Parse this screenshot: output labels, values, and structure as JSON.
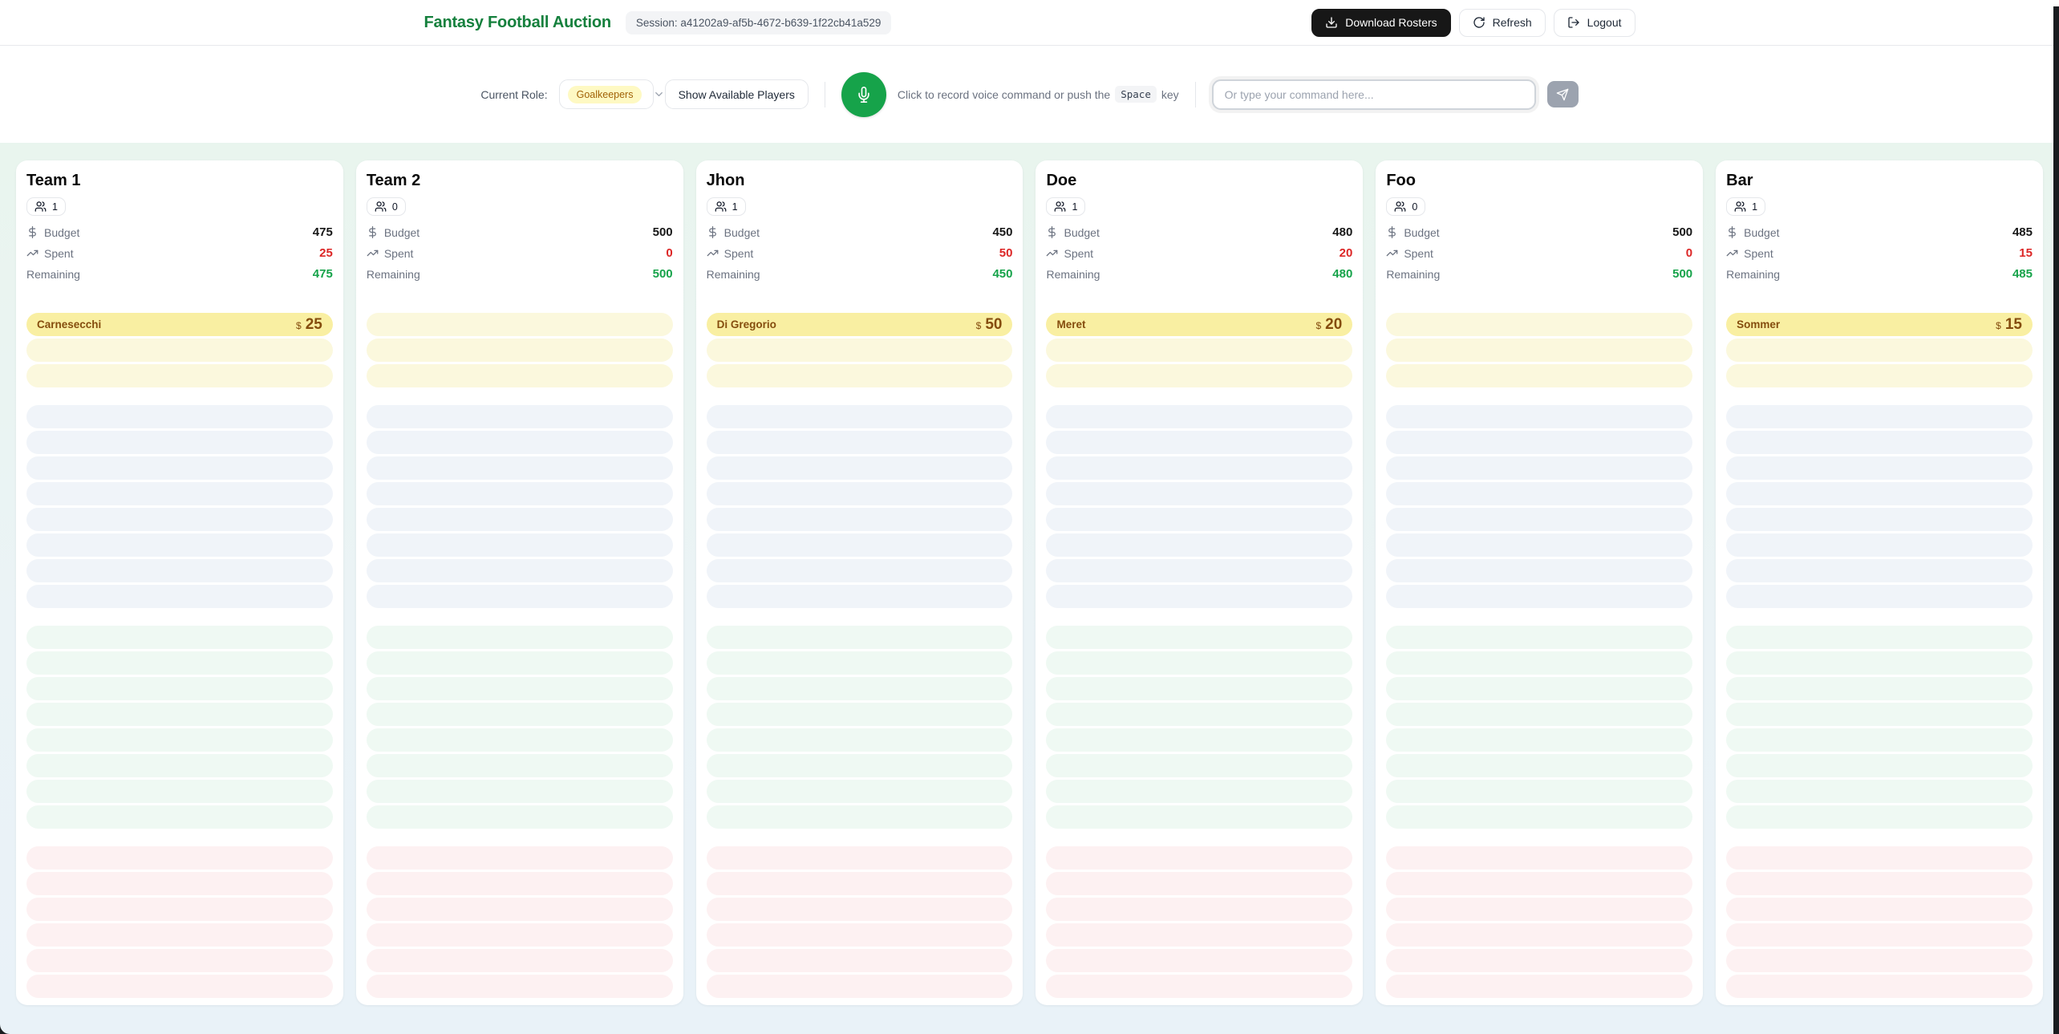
{
  "header": {
    "title": "Fantasy Football Auction",
    "session_label": "Session: a41202a9-af5b-4672-b639-1f22cb41a529",
    "buttons": {
      "download": "Download Rosters",
      "refresh": "Refresh",
      "logout": "Logout"
    }
  },
  "toolbar": {
    "current_role_label": "Current Role:",
    "role_selected": "Goalkeepers",
    "show_players_button": "Show Available Players",
    "voice_hint_prefix": "Click to record voice command or push the",
    "voice_hint_key": "Space",
    "voice_hint_suffix": "key",
    "command_placeholder": "Or type your command here..."
  },
  "colors": {
    "title_green": "#15803d",
    "accent_green": "#16a34a",
    "spent_red": "#dc2626",
    "remaining_green": "#16a34a",
    "slot_gk_filled": "#f9efa2",
    "slot_gk_empty": "#fbf8dd",
    "slot_def_empty": "#f0f4f9",
    "slot_mid_empty": "#eff9f3",
    "slot_fwd_empty": "#fdf1f2"
  },
  "board": {
    "labels": {
      "budget": "Budget",
      "spent": "Spent",
      "remaining": "Remaining"
    },
    "roster_slots": {
      "gk": 3,
      "def": 8,
      "mid": 8,
      "fwd": 6
    },
    "teams": [
      {
        "name": "Team 1",
        "members": "1",
        "budget": "475",
        "spent": "25",
        "remaining": "475",
        "player": {
          "name": "Carnesecchi",
          "currency": "$",
          "price": "25"
        }
      },
      {
        "name": "Team 2",
        "members": "0",
        "budget": "500",
        "spent": "0",
        "remaining": "500",
        "player": null
      },
      {
        "name": "Jhon",
        "members": "1",
        "budget": "450",
        "spent": "50",
        "remaining": "450",
        "player": {
          "name": "Di Gregorio",
          "currency": "$",
          "price": "50"
        }
      },
      {
        "name": "Doe",
        "members": "1",
        "budget": "480",
        "spent": "20",
        "remaining": "480",
        "player": {
          "name": "Meret",
          "currency": "$",
          "price": "20"
        }
      },
      {
        "name": "Foo",
        "members": "0",
        "budget": "500",
        "spent": "0",
        "remaining": "500",
        "player": null
      },
      {
        "name": "Bar",
        "members": "1",
        "budget": "485",
        "spent": "15",
        "remaining": "485",
        "player": {
          "name": "Sommer",
          "currency": "$",
          "price": "15"
        }
      }
    ]
  }
}
